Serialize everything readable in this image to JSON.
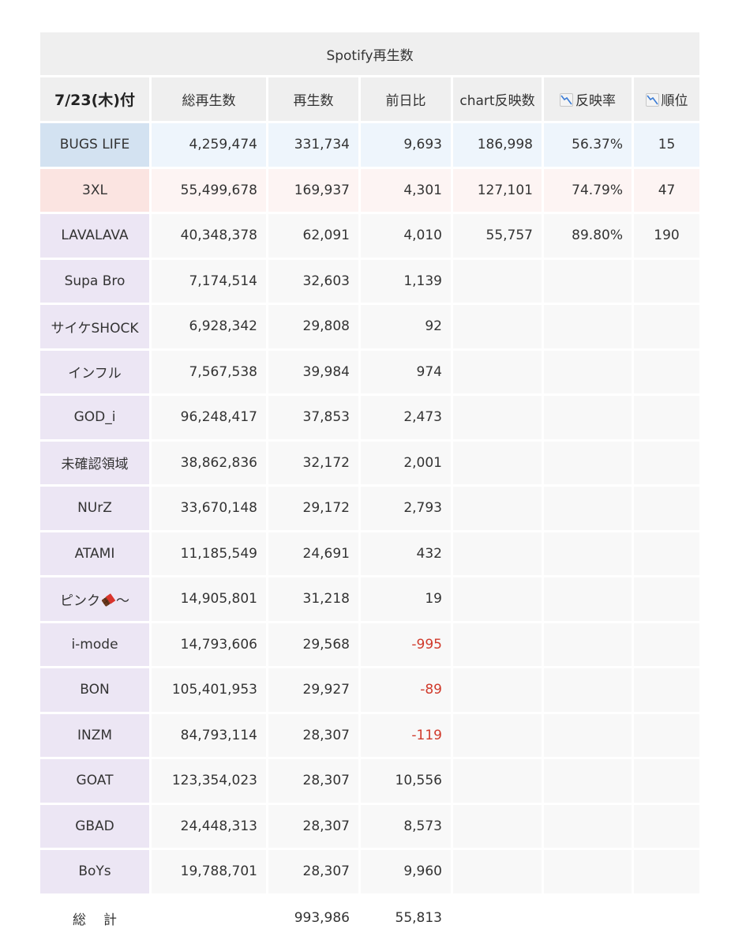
{
  "title": "Spotify再生数",
  "header": {
    "date": "7/23(木)付",
    "columns": [
      "総再生数",
      "再生数",
      "前日比",
      "chart反映数",
      "反映率",
      "順位"
    ]
  },
  "rows": [
    {
      "name": "BUGS LIFE",
      "total": "4,259,474",
      "plays": "331,734",
      "diff": "9,693",
      "chart": "186,998",
      "rate": "56.37%",
      "rank": "15",
      "highlight": "blue"
    },
    {
      "name": "3XL",
      "total": "55,499,678",
      "plays": "169,937",
      "diff": "4,301",
      "chart": "127,101",
      "rate": "74.79%",
      "rank": "47",
      "highlight": "pink"
    },
    {
      "name": "LAVALAVA",
      "total": "40,348,378",
      "plays": "62,091",
      "diff": "4,010",
      "chart": "55,757",
      "rate": "89.80%",
      "rank": "190"
    },
    {
      "name": "Supa Bro",
      "total": "7,174,514",
      "plays": "32,603",
      "diff": "1,139",
      "chart": "",
      "rate": "",
      "rank": ""
    },
    {
      "name": "サイケSHOCK",
      "total": "6,928,342",
      "plays": "29,808",
      "diff": "92",
      "chart": "",
      "rate": "",
      "rank": ""
    },
    {
      "name": "インフル",
      "total": "7,567,538",
      "plays": "39,984",
      "diff": "974",
      "chart": "",
      "rate": "",
      "rank": ""
    },
    {
      "name": "GOD_i",
      "total": "96,248,417",
      "plays": "37,853",
      "diff": "2,473",
      "chart": "",
      "rate": "",
      "rank": ""
    },
    {
      "name": "未確認領域",
      "total": "38,862,836",
      "plays": "32,172",
      "diff": "2,001",
      "chart": "",
      "rate": "",
      "rank": ""
    },
    {
      "name": "NUrZ",
      "total": "33,670,148",
      "plays": "29,172",
      "diff": "2,793",
      "chart": "",
      "rate": "",
      "rank": ""
    },
    {
      "name": "ATAMI",
      "total": "11,185,549",
      "plays": "24,691",
      "diff": "432",
      "chart": "",
      "rate": "",
      "rank": ""
    },
    {
      "name": "ピンク",
      "name_suffix": "〜",
      "name_emoji": "chocolate-bar",
      "total": "14,905,801",
      "plays": "31,218",
      "diff": "19",
      "chart": "",
      "rate": "",
      "rank": ""
    },
    {
      "name": "i-mode",
      "total": "14,793,606",
      "plays": "29,568",
      "diff": "-995",
      "chart": "",
      "rate": "",
      "rank": "",
      "negative": true
    },
    {
      "name": "BON",
      "total": "105,401,953",
      "plays": "29,927",
      "diff": "-89",
      "chart": "",
      "rate": "",
      "rank": "",
      "negative": true
    },
    {
      "name": "INZM",
      "total": "84,793,114",
      "plays": "28,307",
      "diff": "-119",
      "chart": "",
      "rate": "",
      "rank": "",
      "negative": true
    },
    {
      "name": "GOAT",
      "total": "123,354,023",
      "plays": "28,307",
      "diff": "10,556",
      "chart": "",
      "rate": "",
      "rank": ""
    },
    {
      "name": "GBAD",
      "total": "24,448,313",
      "plays": "28,307",
      "diff": "8,573",
      "chart": "",
      "rate": "",
      "rank": ""
    },
    {
      "name": "BoYs",
      "total": "19,788,701",
      "plays": "28,307",
      "diff": "9,960",
      "chart": "",
      "rate": "",
      "rank": ""
    }
  ],
  "totals": {
    "label": "総計",
    "plays": "993,986",
    "diff": "55,813"
  },
  "colors": {
    "header_bg": "#efefef",
    "name_bg": "#ece6f4",
    "cell_bg": "#f8f8f8",
    "highlight_blue_name": "#d3e2f1",
    "highlight_blue_cell": "#eef5fc",
    "highlight_pink_name": "#fbe4e1",
    "highlight_pink_cell": "#fdf4f3",
    "negative": "#d03a2b"
  },
  "icons": {
    "rate_icon": "chart-decreasing-icon",
    "rank_icon": "chart-decreasing-icon"
  }
}
